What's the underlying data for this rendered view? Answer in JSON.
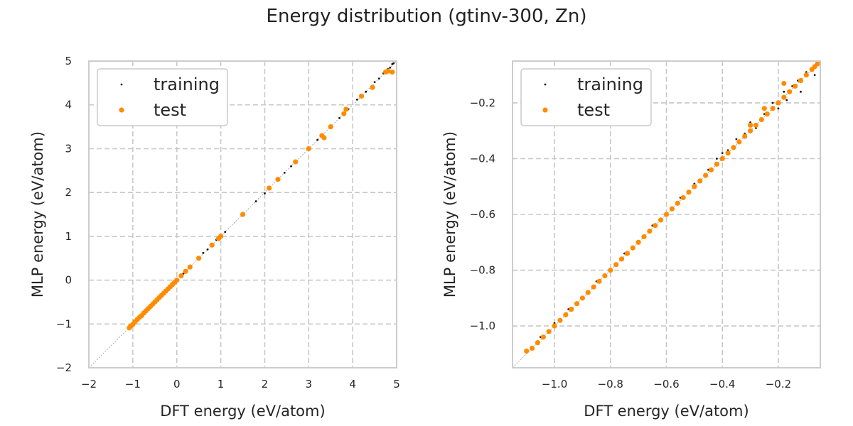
{
  "figure": {
    "title": "Energy distribution (gtinv-300, Zn)"
  },
  "colors": {
    "training": "#111111",
    "test": "#ff8c00",
    "grid": "#c8c8c8",
    "frame": "#cccccc"
  },
  "chart_data": [
    {
      "type": "scatter",
      "xlabel": "DFT energy (eV/atom)",
      "ylabel": "MLP energy (eV/atom)",
      "xlim": [
        -2,
        5
      ],
      "ylim": [
        -2,
        5
      ],
      "xticks": [
        -2,
        -1,
        0,
        1,
        2,
        3,
        4,
        5
      ],
      "yticks": [
        -2,
        -1,
        0,
        1,
        2,
        3,
        4,
        5
      ],
      "xtick_labels": [
        "−2",
        "−1",
        "0",
        "1",
        "2",
        "3",
        "4",
        "5"
      ],
      "ytick_labels": [
        "−2",
        "−1",
        "0",
        "1",
        "2",
        "3",
        "4",
        "5"
      ],
      "grid": true,
      "legend": "top-left",
      "diagonal": true,
      "series": [
        {
          "name": "training",
          "points": [
            [
              -1.08,
              -1.08
            ],
            [
              -1.0,
              -1.0
            ],
            [
              -0.9,
              -0.9
            ],
            [
              -0.8,
              -0.8
            ],
            [
              -0.7,
              -0.7
            ],
            [
              -0.6,
              -0.6
            ],
            [
              -0.5,
              -0.5
            ],
            [
              -0.4,
              -0.4
            ],
            [
              -0.3,
              -0.3
            ],
            [
              -0.2,
              -0.2
            ],
            [
              -0.1,
              -0.1
            ],
            [
              0.0,
              0.0
            ],
            [
              0.15,
              0.15
            ],
            [
              0.3,
              0.3
            ],
            [
              0.6,
              0.62
            ],
            [
              0.7,
              0.7
            ],
            [
              0.9,
              0.92
            ],
            [
              1.1,
              1.1
            ],
            [
              1.5,
              1.5
            ],
            [
              1.8,
              1.8
            ],
            [
              2.0,
              1.98
            ],
            [
              2.1,
              2.12
            ],
            [
              2.45,
              2.45
            ],
            [
              2.6,
              2.6
            ],
            [
              3.0,
              3.0
            ],
            [
              3.2,
              3.2
            ],
            [
              3.5,
              3.52
            ],
            [
              3.7,
              3.7
            ],
            [
              3.9,
              3.9
            ],
            [
              4.1,
              4.12
            ],
            [
              4.3,
              4.3
            ],
            [
              4.5,
              4.52
            ],
            [
              4.6,
              4.6
            ],
            [
              4.7,
              4.72
            ],
            [
              4.8,
              4.82
            ],
            [
              4.85,
              4.85
            ],
            [
              4.9,
              4.93
            ],
            [
              4.93,
              4.95
            ]
          ]
        },
        {
          "name": "test",
          "points": [
            [
              -1.08,
              -1.09
            ],
            [
              -1.05,
              -1.05
            ],
            [
              -1.0,
              -1.01
            ],
            [
              -0.95,
              -0.95
            ],
            [
              -0.9,
              -0.9
            ],
            [
              -0.85,
              -0.85
            ],
            [
              -0.8,
              -0.81
            ],
            [
              -0.75,
              -0.75
            ],
            [
              -0.7,
              -0.7
            ],
            [
              -0.65,
              -0.65
            ],
            [
              -0.6,
              -0.6
            ],
            [
              -0.55,
              -0.55
            ],
            [
              -0.5,
              -0.5
            ],
            [
              -0.45,
              -0.45
            ],
            [
              -0.4,
              -0.4
            ],
            [
              -0.35,
              -0.35
            ],
            [
              -0.3,
              -0.3
            ],
            [
              -0.25,
              -0.25
            ],
            [
              -0.2,
              -0.2
            ],
            [
              -0.15,
              -0.15
            ],
            [
              -0.1,
              -0.1
            ],
            [
              -0.05,
              -0.05
            ],
            [
              0.0,
              0.0
            ],
            [
              0.1,
              0.1
            ],
            [
              0.2,
              0.2
            ],
            [
              0.3,
              0.3
            ],
            [
              0.5,
              0.5
            ],
            [
              0.8,
              0.8
            ],
            [
              0.95,
              0.95
            ],
            [
              1.0,
              1.0
            ],
            [
              1.5,
              1.5
            ],
            [
              2.1,
              2.1
            ],
            [
              2.3,
              2.3
            ],
            [
              2.7,
              2.7
            ],
            [
              3.0,
              3.0
            ],
            [
              3.3,
              3.3
            ],
            [
              3.35,
              3.25
            ],
            [
              3.5,
              3.5
            ],
            [
              3.8,
              3.8
            ],
            [
              3.85,
              3.9
            ],
            [
              4.2,
              4.2
            ],
            [
              4.45,
              4.4
            ],
            [
              4.75,
              4.75
            ],
            [
              4.8,
              4.77
            ],
            [
              4.9,
              4.75
            ]
          ]
        }
      ]
    },
    {
      "type": "scatter",
      "xlabel": "DFT energy (eV/atom)",
      "ylabel": "MLP energy (eV/atom)",
      "xlim": [
        -1.15,
        -0.05
      ],
      "ylim": [
        -1.15,
        -0.05
      ],
      "xticks": [
        -1.0,
        -0.8,
        -0.6,
        -0.4,
        -0.2
      ],
      "yticks": [
        -1.0,
        -0.8,
        -0.6,
        -0.4,
        -0.2
      ],
      "xtick_labels": [
        "−1.0",
        "−0.8",
        "−0.6",
        "−0.4",
        "−0.2"
      ],
      "ytick_labels": [
        "−1.0",
        "−0.8",
        "−0.6",
        "−0.4",
        "−0.2"
      ],
      "grid": true,
      "legend": "top-left",
      "diagonal": true,
      "series": [
        {
          "name": "training",
          "points": [
            [
              -1.1,
              -1.09
            ],
            [
              -1.05,
              -1.04
            ],
            [
              -1.0,
              -0.99
            ],
            [
              -0.95,
              -0.94
            ],
            [
              -0.9,
              -0.9
            ],
            [
              -0.85,
              -0.84
            ],
            [
              -0.8,
              -0.8
            ],
            [
              -0.75,
              -0.74
            ],
            [
              -0.7,
              -0.7
            ],
            [
              -0.65,
              -0.64
            ],
            [
              -0.6,
              -0.6
            ],
            [
              -0.55,
              -0.54
            ],
            [
              -0.5,
              -0.49
            ],
            [
              -0.45,
              -0.44
            ],
            [
              -0.42,
              -0.4
            ],
            [
              -0.4,
              -0.38
            ],
            [
              -0.38,
              -0.37
            ],
            [
              -0.35,
              -0.33
            ],
            [
              -0.32,
              -0.31
            ],
            [
              -0.3,
              -0.27
            ],
            [
              -0.28,
              -0.29
            ],
            [
              -0.25,
              -0.24
            ],
            [
              -0.22,
              -0.2
            ],
            [
              -0.2,
              -0.22
            ],
            [
              -0.18,
              -0.16
            ],
            [
              -0.17,
              -0.19
            ],
            [
              -0.15,
              -0.14
            ],
            [
              -0.13,
              -0.12
            ],
            [
              -0.12,
              -0.16
            ],
            [
              -0.1,
              -0.09
            ],
            [
              -0.08,
              -0.08
            ],
            [
              -0.07,
              -0.1
            ]
          ]
        },
        {
          "name": "test",
          "points": [
            [
              -1.1,
              -1.09
            ],
            [
              -1.08,
              -1.08
            ],
            [
              -1.06,
              -1.06
            ],
            [
              -1.04,
              -1.04
            ],
            [
              -1.02,
              -1.02
            ],
            [
              -1.0,
              -1.0
            ],
            [
              -0.98,
              -0.98
            ],
            [
              -0.96,
              -0.96
            ],
            [
              -0.94,
              -0.94
            ],
            [
              -0.92,
              -0.92
            ],
            [
              -0.9,
              -0.9
            ],
            [
              -0.88,
              -0.88
            ],
            [
              -0.86,
              -0.86
            ],
            [
              -0.84,
              -0.84
            ],
            [
              -0.82,
              -0.82
            ],
            [
              -0.8,
              -0.8
            ],
            [
              -0.78,
              -0.78
            ],
            [
              -0.76,
              -0.76
            ],
            [
              -0.74,
              -0.74
            ],
            [
              -0.72,
              -0.72
            ],
            [
              -0.7,
              -0.7
            ],
            [
              -0.68,
              -0.68
            ],
            [
              -0.66,
              -0.66
            ],
            [
              -0.64,
              -0.64
            ],
            [
              -0.62,
              -0.62
            ],
            [
              -0.6,
              -0.6
            ],
            [
              -0.58,
              -0.58
            ],
            [
              -0.56,
              -0.56
            ],
            [
              -0.54,
              -0.54
            ],
            [
              -0.52,
              -0.52
            ],
            [
              -0.5,
              -0.5
            ],
            [
              -0.48,
              -0.48
            ],
            [
              -0.46,
              -0.46
            ],
            [
              -0.44,
              -0.44
            ],
            [
              -0.42,
              -0.42
            ],
            [
              -0.4,
              -0.4
            ],
            [
              -0.38,
              -0.38
            ],
            [
              -0.36,
              -0.36
            ],
            [
              -0.34,
              -0.34
            ],
            [
              -0.32,
              -0.32
            ],
            [
              -0.3,
              -0.3
            ],
            [
              -0.28,
              -0.28
            ],
            [
              -0.26,
              -0.26
            ],
            [
              -0.24,
              -0.24
            ],
            [
              -0.22,
              -0.22
            ],
            [
              -0.2,
              -0.2
            ],
            [
              -0.18,
              -0.18
            ],
            [
              -0.16,
              -0.16
            ],
            [
              -0.14,
              -0.14
            ],
            [
              -0.12,
              -0.12
            ],
            [
              -0.1,
              -0.1
            ],
            [
              -0.08,
              -0.08
            ],
            [
              -0.07,
              -0.07
            ],
            [
              -0.06,
              -0.06
            ],
            [
              -0.18,
              -0.13
            ],
            [
              -0.3,
              -0.28
            ],
            [
              -0.25,
              -0.22
            ]
          ]
        }
      ]
    }
  ]
}
